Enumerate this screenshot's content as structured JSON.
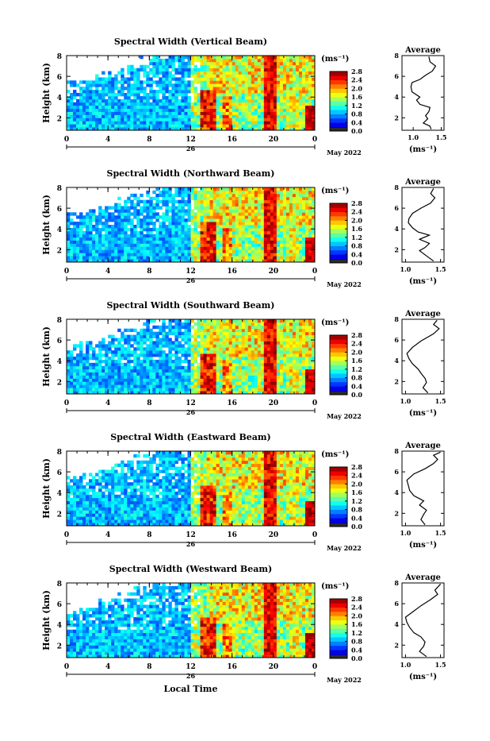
{
  "month_label": "May 2022",
  "day_label": "26",
  "x_axis_title": "Local Time",
  "y_axis_title": "Height (km)",
  "colorbar_unit": "(ms⁻¹)",
  "average_title": "Average",
  "average_unit": "(ms⁻¹)",
  "chart_data": [
    {
      "type": "heatmap",
      "title": "Spectral Width (Vertical Beam)",
      "xlabel": "",
      "ylabel": "Height (km)",
      "x_ticks": [
        "0",
        "4",
        "8",
        "12",
        "16",
        "20",
        "0"
      ],
      "xlim": [
        0,
        24
      ],
      "y_ticks": [
        "2",
        "4",
        "6",
        "8"
      ],
      "ylim": [
        0.8,
        8
      ],
      "colorbar": {
        "ticks": [
          "0.0",
          "0.4",
          "0.8",
          "1.2",
          "1.6",
          "2.0",
          "2.4",
          "2.8"
        ],
        "range": [
          0,
          2.8
        ]
      },
      "average": {
        "x_ticks": [
          "1.0",
          "1.5"
        ],
        "xlim": [
          0.8,
          1.55
        ],
        "y_ticks": [
          "2",
          "4",
          "6",
          "8"
        ],
        "ylim": [
          0.8,
          8
        ],
        "profile": [
          [
            1.32,
            0.9
          ],
          [
            1.3,
            1.2
          ],
          [
            1.18,
            1.5
          ],
          [
            1.26,
            1.9
          ],
          [
            1.22,
            2.2
          ],
          [
            1.28,
            2.6
          ],
          [
            1.3,
            3.0
          ],
          [
            1.12,
            3.3
          ],
          [
            1.06,
            3.7
          ],
          [
            1.12,
            4.0
          ],
          [
            0.98,
            4.5
          ],
          [
            0.96,
            5.0
          ],
          [
            0.98,
            5.4
          ],
          [
            1.12,
            5.7
          ],
          [
            1.22,
            6.1
          ],
          [
            1.34,
            6.5
          ],
          [
            1.4,
            7.0
          ],
          [
            1.3,
            7.4
          ],
          [
            1.28,
            7.9
          ]
        ]
      }
    },
    {
      "type": "heatmap",
      "title": "Spectral Width (Northward Beam)",
      "xlabel": "",
      "ylabel": "Height (km)",
      "x_ticks": [
        "0",
        "4",
        "8",
        "12",
        "16",
        "20",
        "0"
      ],
      "xlim": [
        0,
        24
      ],
      "y_ticks": [
        "2",
        "4",
        "6",
        "8"
      ],
      "ylim": [
        0.8,
        8
      ],
      "colorbar": {
        "ticks": [
          "0.0",
          "0.4",
          "0.8",
          "1.2",
          "1.6",
          "2.0",
          "2.4",
          "2.8"
        ],
        "range": [
          0,
          2.8
        ]
      },
      "average": {
        "x_ticks": [
          "1.0",
          "1.5"
        ],
        "xlim": [
          0.95,
          1.55
        ],
        "y_ticks": [
          "2",
          "4",
          "6",
          "8"
        ],
        "ylim": [
          0.8,
          8
        ],
        "profile": [
          [
            1.4,
            0.9
          ],
          [
            1.3,
            1.4
          ],
          [
            1.2,
            1.9
          ],
          [
            1.28,
            2.2
          ],
          [
            1.34,
            2.6
          ],
          [
            1.2,
            3.0
          ],
          [
            1.34,
            3.4
          ],
          [
            1.18,
            3.7
          ],
          [
            1.1,
            4.1
          ],
          [
            1.04,
            4.6
          ],
          [
            1.05,
            5.0
          ],
          [
            1.1,
            5.5
          ],
          [
            1.22,
            6.0
          ],
          [
            1.36,
            6.5
          ],
          [
            1.42,
            7.0
          ],
          [
            1.36,
            7.4
          ],
          [
            1.4,
            7.9
          ]
        ]
      }
    },
    {
      "type": "heatmap",
      "title": "Spectral Width (Southward Beam)",
      "xlabel": "",
      "ylabel": "Height (km)",
      "x_ticks": [
        "0",
        "4",
        "8",
        "12",
        "16",
        "20",
        "0"
      ],
      "xlim": [
        0,
        24
      ],
      "y_ticks": [
        "2",
        "4",
        "6",
        "8"
      ],
      "ylim": [
        0.8,
        8
      ],
      "colorbar": {
        "ticks": [
          "0.0",
          "0.4",
          "0.8",
          "1.2",
          "1.6",
          "2.0",
          "2.4",
          "2.8"
        ],
        "range": [
          0,
          2.8
        ]
      },
      "average": {
        "x_ticks": [
          "1.0",
          "1.5"
        ],
        "xlim": [
          0.95,
          1.55
        ],
        "y_ticks": [
          "2",
          "4",
          "6",
          "8"
        ],
        "ylim": [
          0.8,
          8
        ],
        "profile": [
          [
            1.32,
            0.9
          ],
          [
            1.25,
            1.4
          ],
          [
            1.3,
            1.9
          ],
          [
            1.28,
            2.3
          ],
          [
            1.22,
            2.8
          ],
          [
            1.18,
            3.2
          ],
          [
            1.1,
            3.7
          ],
          [
            1.05,
            4.2
          ],
          [
            1.02,
            4.7
          ],
          [
            1.1,
            5.3
          ],
          [
            1.22,
            5.9
          ],
          [
            1.4,
            6.6
          ],
          [
            1.48,
            7.1
          ],
          [
            1.4,
            7.5
          ],
          [
            1.45,
            7.9
          ]
        ]
      }
    },
    {
      "type": "heatmap",
      "title": "Spectral Width (Eastward Beam)",
      "xlabel": "",
      "ylabel": "Height (km)",
      "x_ticks": [
        "0",
        "4",
        "8",
        "12",
        "16",
        "20",
        "0"
      ],
      "xlim": [
        0,
        24
      ],
      "y_ticks": [
        "2",
        "4",
        "6",
        "8"
      ],
      "ylim": [
        0.8,
        8
      ],
      "colorbar": {
        "ticks": [
          "0.0",
          "0.4",
          "0.8",
          "1.2",
          "1.6",
          "2.0",
          "2.4",
          "2.8"
        ],
        "range": [
          0,
          2.8
        ]
      },
      "average": {
        "x_ticks": [
          "1.0",
          "1.5"
        ],
        "xlim": [
          0.95,
          1.55
        ],
        "y_ticks": [
          "2",
          "4",
          "6",
          "8"
        ],
        "ylim": [
          0.8,
          8
        ],
        "profile": [
          [
            1.28,
            0.9
          ],
          [
            1.22,
            1.4
          ],
          [
            1.26,
            1.9
          ],
          [
            1.3,
            2.3
          ],
          [
            1.2,
            2.8
          ],
          [
            1.26,
            3.2
          ],
          [
            1.12,
            3.7
          ],
          [
            1.06,
            4.2
          ],
          [
            1.04,
            4.7
          ],
          [
            1.02,
            5.2
          ],
          [
            1.12,
            5.8
          ],
          [
            1.28,
            6.3
          ],
          [
            1.4,
            6.8
          ],
          [
            1.46,
            7.2
          ],
          [
            1.4,
            7.6
          ],
          [
            1.5,
            7.9
          ]
        ]
      }
    },
    {
      "type": "heatmap",
      "title": "Spectral Width (Westward Beam)",
      "xlabel": "Local Time",
      "ylabel": "Height (km)",
      "x_ticks": [
        "0",
        "4",
        "8",
        "12",
        "16",
        "20",
        "0"
      ],
      "xlim": [
        0,
        24
      ],
      "y_ticks": [
        "2",
        "4",
        "6",
        "8"
      ],
      "ylim": [
        0.8,
        8
      ],
      "colorbar": {
        "ticks": [
          "0.0",
          "0.4",
          "0.8",
          "1.2",
          "1.6",
          "2.0",
          "2.4",
          "2.8"
        ],
        "range": [
          0,
          2.8
        ]
      },
      "average": {
        "x_ticks": [
          "1.0",
          "1.5"
        ],
        "xlim": [
          0.95,
          1.55
        ],
        "y_ticks": [
          "2",
          "4",
          "6",
          "8"
        ],
        "ylim": [
          0.8,
          8
        ],
        "profile": [
          [
            1.3,
            0.9
          ],
          [
            1.2,
            1.4
          ],
          [
            1.26,
            1.9
          ],
          [
            1.28,
            2.3
          ],
          [
            1.22,
            2.8
          ],
          [
            1.12,
            3.2
          ],
          [
            1.06,
            3.7
          ],
          [
            1.02,
            4.2
          ],
          [
            1.0,
            4.7
          ],
          [
            1.1,
            5.2
          ],
          [
            1.22,
            5.8
          ],
          [
            1.36,
            6.4
          ],
          [
            1.46,
            6.9
          ],
          [
            1.42,
            7.3
          ],
          [
            1.5,
            7.9
          ]
        ]
      }
    }
  ]
}
